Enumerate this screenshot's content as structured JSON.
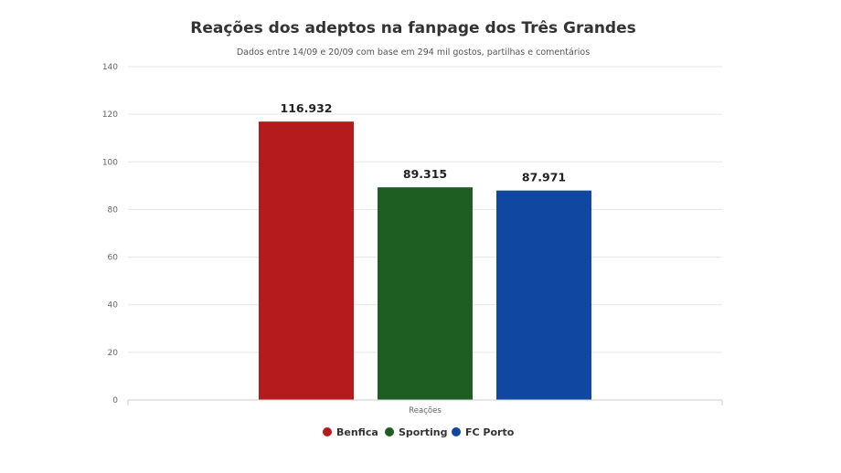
{
  "chart_data": {
    "type": "bar",
    "title": "Reações dos adeptos na fanpage dos Três Grandes",
    "subtitle": "Dados entre 14/09 e 20/09 com base em 294 mil gostos, partilhas e comentários",
    "categories": [
      "Reações"
    ],
    "series": [
      {
        "name": "Benfica",
        "values": [
          116.932
        ],
        "label": "116.932",
        "color": "#b41b1d"
      },
      {
        "name": "Sporting",
        "values": [
          89.315
        ],
        "label": "89.315",
        "color": "#1e5e22"
      },
      {
        "name": "FC Porto",
        "values": [
          87.971
        ],
        "label": "87.971",
        "color": "#0f47a1"
      }
    ],
    "ylim": [
      0,
      140
    ],
    "yticks": [
      0,
      20,
      40,
      60,
      80,
      100,
      120,
      140
    ],
    "xlabel": "",
    "ylabel": "",
    "grid": true,
    "legend": "bottom-center"
  }
}
